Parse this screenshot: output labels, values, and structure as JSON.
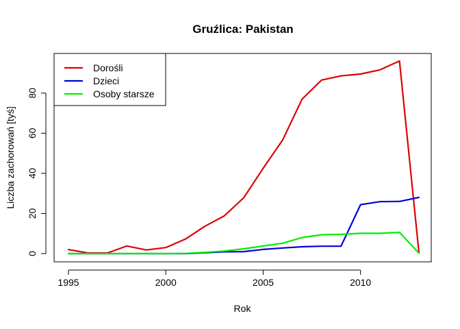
{
  "chart_data": {
    "type": "line",
    "title": "Gruźlica: Pakistan",
    "xlabel": "Rok",
    "ylabel": "Liczba zachorowań [tyś]",
    "xlim": [
      1995,
      2013
    ],
    "ylim": [
      0,
      96
    ],
    "x_ticks": [
      1995,
      2000,
      2005,
      2010
    ],
    "y_ticks": [
      0,
      20,
      40,
      60,
      80
    ],
    "legend_position": "top-left",
    "grid": false,
    "x": [
      1995,
      1996,
      1997,
      1998,
      1999,
      2000,
      2001,
      2002,
      2003,
      2004,
      2005,
      2006,
      2007,
      2008,
      2009,
      2010,
      2011,
      2012,
      2013
    ],
    "series": [
      {
        "name": "Dorośli",
        "color": "#dd0000",
        "values": [
          2.0,
          0.3,
          0.3,
          3.8,
          1.8,
          3.0,
          7.2,
          13.6,
          18.8,
          27.8,
          42.5,
          56.6,
          77.0,
          86.5,
          88.6,
          89.5,
          91.6,
          96.0,
          0.5
        ]
      },
      {
        "name": "Dzieci",
        "color": "#0000dd",
        "values": [
          0.0,
          0.0,
          0.0,
          0.0,
          0.0,
          0.0,
          0.0,
          0.4,
          0.9,
          1.0,
          2.1,
          2.8,
          3.4,
          3.7,
          3.7,
          24.4,
          25.9,
          26.0,
          28.0
        ]
      },
      {
        "name": "Osoby starsze",
        "color": "#00ee00",
        "values": [
          0.0,
          0.0,
          0.0,
          0.0,
          0.0,
          0.0,
          0.1,
          0.6,
          1.3,
          2.4,
          3.8,
          5.2,
          8.0,
          9.4,
          9.6,
          10.1,
          10.1,
          10.6,
          0.2
        ]
      }
    ]
  }
}
